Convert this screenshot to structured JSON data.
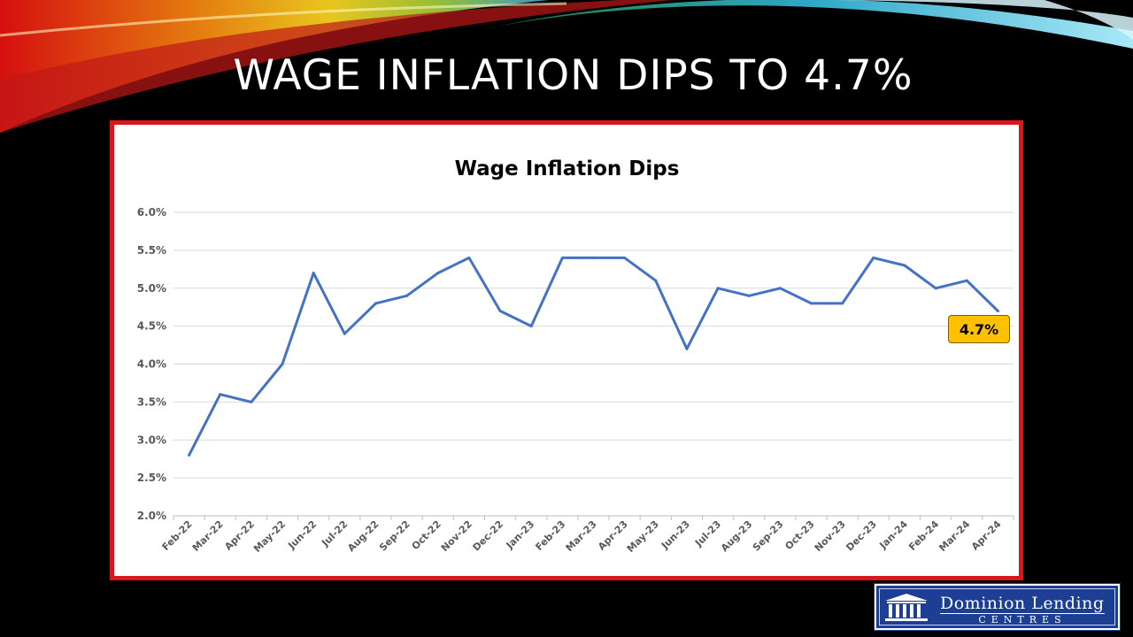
{
  "slide": {
    "title": "WAGE INFLATION DIPS TO 4.7%"
  },
  "callout": {
    "text": "4.7%",
    "color": "#ffc000"
  },
  "logo": {
    "name": "Dominion Lending",
    "sub": "CENTRES",
    "bg_color": "#1c3f94",
    "icon": "building-columns-icon"
  },
  "chart_data": {
    "type": "line",
    "title": "Wage Inflation Dips",
    "xlabel": "",
    "ylabel": "",
    "categories": [
      "Feb-22",
      "Mar-22",
      "Apr-22",
      "May-22",
      "Jun-22",
      "Jul-22",
      "Aug-22",
      "Sep-22",
      "Oct-22",
      "Nov-22",
      "Dec-22",
      "Jan-23",
      "Feb-23",
      "Mar-23",
      "Apr-23",
      "May-23",
      "Jun-23",
      "Jul-23",
      "Aug-23",
      "Sep-23",
      "Oct-23",
      "Nov-23",
      "Dec-23",
      "Jan-24",
      "Feb-24",
      "Mar-24",
      "Apr-24"
    ],
    "series": [
      {
        "values": [
          2.8,
          3.6,
          3.5,
          4.0,
          5.2,
          4.4,
          4.8,
          4.9,
          5.2,
          5.4,
          4.7,
          4.5,
          5.4,
          5.4,
          5.4,
          5.1,
          4.2,
          5.0,
          4.9,
          5.0,
          4.8,
          4.8,
          5.4,
          5.3,
          5.0,
          5.1,
          4.7
        ],
        "color": "#4472c4"
      }
    ],
    "ylim": [
      2.0,
      6.0
    ],
    "yticks": [
      "2.0%",
      "2.5%",
      "3.0%",
      "3.5%",
      "4.0%",
      "4.5%",
      "5.0%",
      "5.5%",
      "6.0%"
    ],
    "ytick_values": [
      2.0,
      2.5,
      3.0,
      3.5,
      4.0,
      4.5,
      5.0,
      5.5,
      6.0
    ],
    "grid": true,
    "legend": "none"
  }
}
